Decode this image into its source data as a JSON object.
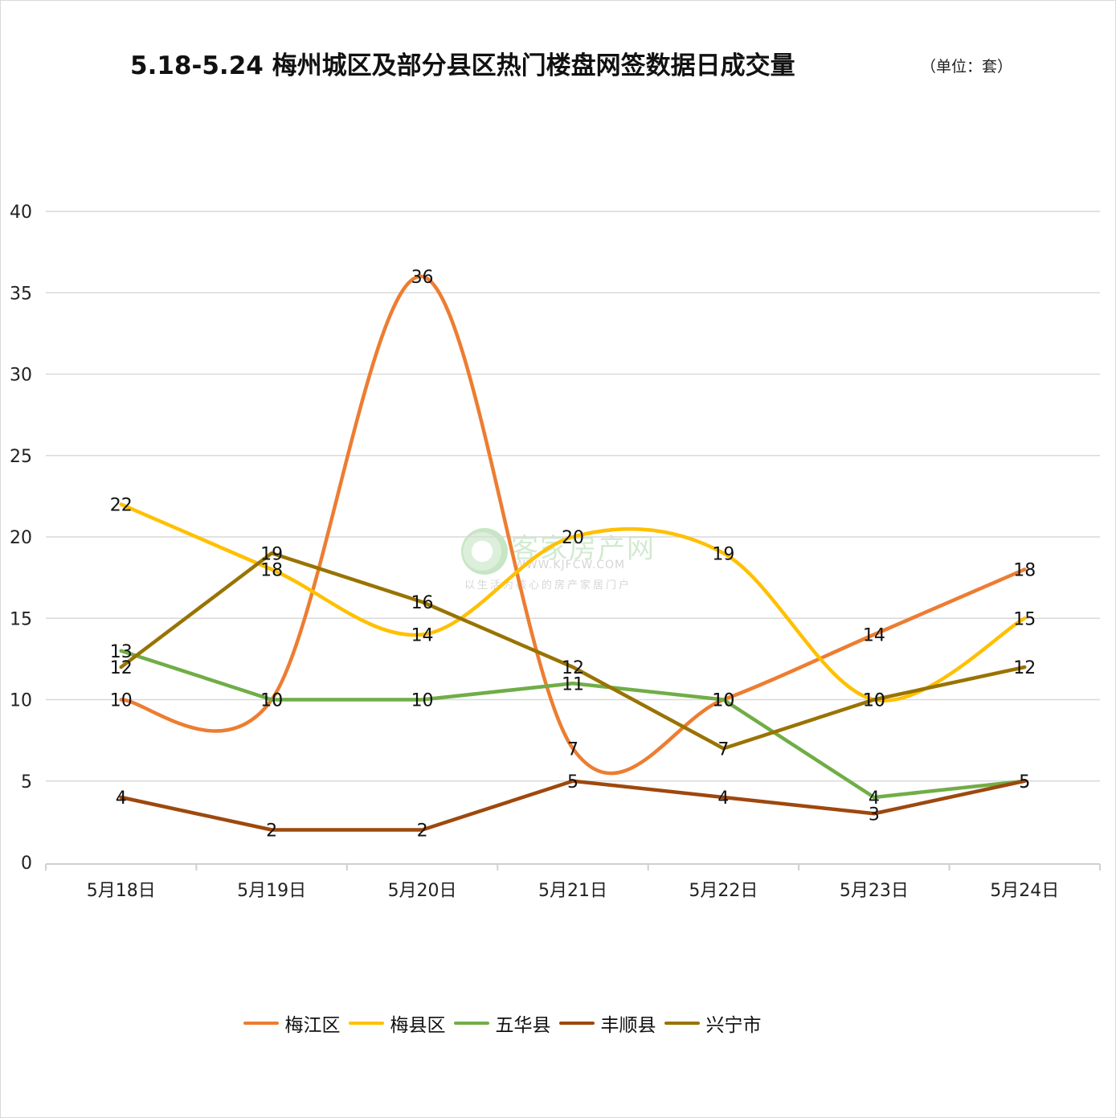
{
  "title": "5.18-5.24 梅州城区及部分县区热门楼盘网签数据日成交量",
  "unit": "（单位：套）",
  "watermark": {
    "name": "客家房产网",
    "url": "WWW.KJFCW.COM",
    "slogan": "以生活为核心的房产家居门户"
  },
  "chart_data": {
    "type": "line",
    "categories": [
      "5月18日",
      "5月19日",
      "5月20日",
      "5月21日",
      "5月22日",
      "5月23日",
      "5月24日"
    ],
    "ylim": [
      0,
      40
    ],
    "yticks": [
      0,
      5,
      10,
      15,
      20,
      25,
      30,
      35,
      40
    ],
    "grid": true,
    "legend_position": "bottom",
    "series": [
      {
        "name": "梅江区",
        "color": "#ed7d31",
        "smooth": true,
        "values": [
          10,
          10,
          36,
          7,
          10,
          14,
          18
        ]
      },
      {
        "name": "梅县区",
        "color": "#ffc000",
        "smooth": true,
        "values": [
          22,
          18,
          14,
          20,
          19,
          10,
          15
        ]
      },
      {
        "name": "五华县",
        "color": "#70ad47",
        "smooth": false,
        "values": [
          13,
          10,
          10,
          11,
          10,
          4,
          5
        ]
      },
      {
        "name": "丰顺县",
        "color": "#9e480e",
        "smooth": false,
        "values": [
          4,
          2,
          2,
          5,
          4,
          3,
          5
        ]
      },
      {
        "name": "兴宁市",
        "color": "#997300",
        "smooth": false,
        "values": [
          12,
          19,
          16,
          12,
          7,
          10,
          12
        ]
      }
    ]
  }
}
